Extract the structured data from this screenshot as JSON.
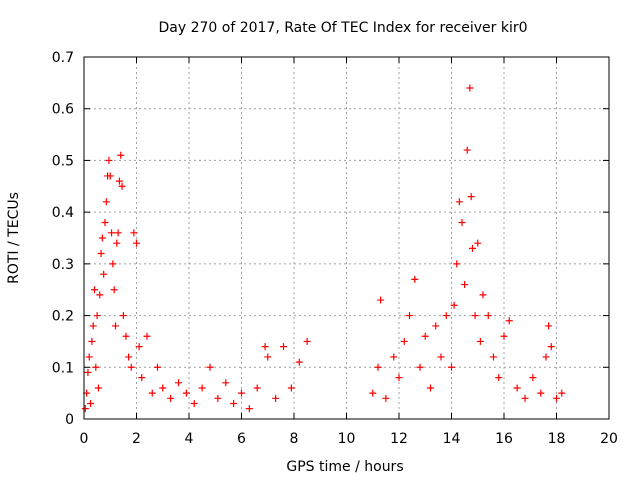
{
  "chart_data": {
    "type": "scatter",
    "title": "Day 270 of 2017, Rate Of TEC Index for receiver kir0",
    "xlabel": "GPS time / hours",
    "ylabel": "ROTI / TECUs",
    "xlim": [
      0,
      20
    ],
    "ylim": [
      0,
      0.7
    ],
    "xticks": [
      0,
      2,
      4,
      6,
      8,
      10,
      12,
      14,
      16,
      18,
      20
    ],
    "yticks": [
      0,
      0.1,
      0.2,
      0.3,
      0.4,
      0.5,
      0.6,
      0.7
    ],
    "xtick_labels": [
      "0",
      "2",
      "4",
      "6",
      "8",
      "10",
      "12",
      "14",
      "16",
      "18",
      "20"
    ],
    "ytick_labels": [
      "0",
      "0.1",
      "0.2",
      "0.3",
      "0.4",
      "0.5",
      "0.6",
      "0.7"
    ],
    "grid": true,
    "marker": "+",
    "color": "#ff0000",
    "series": [
      {
        "name": "ROTI",
        "points": [
          [
            0.05,
            0.02
          ],
          [
            0.1,
            0.05
          ],
          [
            0.15,
            0.09
          ],
          [
            0.2,
            0.12
          ],
          [
            0.25,
            0.03
          ],
          [
            0.3,
            0.15
          ],
          [
            0.35,
            0.18
          ],
          [
            0.4,
            0.25
          ],
          [
            0.45,
            0.1
          ],
          [
            0.5,
            0.2
          ],
          [
            0.55,
            0.06
          ],
          [
            0.6,
            0.24
          ],
          [
            0.65,
            0.32
          ],
          [
            0.7,
            0.35
          ],
          [
            0.75,
            0.28
          ],
          [
            0.8,
            0.38
          ],
          [
            0.85,
            0.42
          ],
          [
            0.9,
            0.47
          ],
          [
            0.95,
            0.5
          ],
          [
            1.0,
            0.47
          ],
          [
            1.05,
            0.36
          ],
          [
            1.1,
            0.3
          ],
          [
            1.15,
            0.25
          ],
          [
            1.2,
            0.18
          ],
          [
            1.25,
            0.34
          ],
          [
            1.3,
            0.36
          ],
          [
            1.35,
            0.46
          ],
          [
            1.4,
            0.51
          ],
          [
            1.45,
            0.45
          ],
          [
            1.5,
            0.2
          ],
          [
            1.6,
            0.16
          ],
          [
            1.7,
            0.12
          ],
          [
            1.8,
            0.1
          ],
          [
            1.9,
            0.36
          ],
          [
            2.0,
            0.34
          ],
          [
            2.1,
            0.14
          ],
          [
            2.2,
            0.08
          ],
          [
            2.4,
            0.16
          ],
          [
            2.6,
            0.05
          ],
          [
            2.8,
            0.1
          ],
          [
            3.0,
            0.06
          ],
          [
            3.3,
            0.04
          ],
          [
            3.6,
            0.07
          ],
          [
            3.9,
            0.05
          ],
          [
            4.2,
            0.03
          ],
          [
            4.5,
            0.06
          ],
          [
            4.8,
            0.1
          ],
          [
            5.1,
            0.04
          ],
          [
            5.4,
            0.07
          ],
          [
            5.7,
            0.03
          ],
          [
            6.0,
            0.05
          ],
          [
            6.3,
            0.02
          ],
          [
            6.6,
            0.06
          ],
          [
            6.9,
            0.14
          ],
          [
            7.0,
            0.12
          ],
          [
            7.3,
            0.04
          ],
          [
            7.6,
            0.14
          ],
          [
            7.9,
            0.06
          ],
          [
            8.2,
            0.11
          ],
          [
            8.5,
            0.15
          ],
          [
            11.0,
            0.05
          ],
          [
            11.2,
            0.1
          ],
          [
            11.3,
            0.23
          ],
          [
            11.5,
            0.04
          ],
          [
            11.8,
            0.12
          ],
          [
            12.0,
            0.08
          ],
          [
            12.2,
            0.15
          ],
          [
            12.4,
            0.2
          ],
          [
            12.6,
            0.27
          ],
          [
            12.8,
            0.1
          ],
          [
            13.0,
            0.16
          ],
          [
            13.2,
            0.06
          ],
          [
            13.4,
            0.18
          ],
          [
            13.6,
            0.12
          ],
          [
            13.8,
            0.2
          ],
          [
            14.0,
            0.1
          ],
          [
            14.1,
            0.22
          ],
          [
            14.2,
            0.3
          ],
          [
            14.3,
            0.42
          ],
          [
            14.4,
            0.38
          ],
          [
            14.5,
            0.26
          ],
          [
            14.6,
            0.52
          ],
          [
            14.7,
            0.64
          ],
          [
            14.75,
            0.43
          ],
          [
            14.8,
            0.33
          ],
          [
            14.9,
            0.2
          ],
          [
            15.0,
            0.34
          ],
          [
            15.1,
            0.15
          ],
          [
            15.2,
            0.24
          ],
          [
            15.4,
            0.2
          ],
          [
            15.6,
            0.12
          ],
          [
            15.8,
            0.08
          ],
          [
            16.0,
            0.16
          ],
          [
            16.2,
            0.19
          ],
          [
            16.5,
            0.06
          ],
          [
            16.8,
            0.04
          ],
          [
            17.1,
            0.08
          ],
          [
            17.4,
            0.05
          ],
          [
            17.6,
            0.12
          ],
          [
            17.7,
            0.18
          ],
          [
            17.8,
            0.14
          ],
          [
            18.0,
            0.04
          ],
          [
            18.2,
            0.05
          ]
        ]
      }
    ]
  }
}
